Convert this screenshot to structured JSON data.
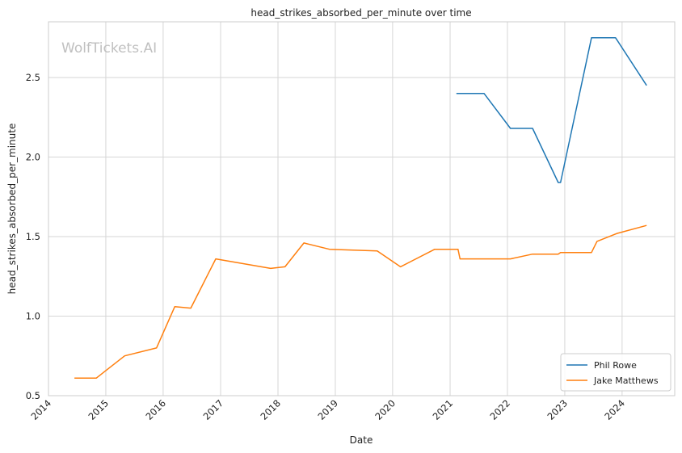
{
  "chart_data": {
    "type": "line",
    "title": "head_strikes_absorbed_per_minute over time",
    "xlabel": "Date",
    "ylabel": "head_strikes_absorbed_per_minute",
    "watermark": "WolfTickets.AI",
    "xlim": [
      "2014-01-01",
      "2024-12-01"
    ],
    "ylim": [
      0.5,
      2.85
    ],
    "x_ticks": [
      "2014",
      "2015",
      "2016",
      "2017",
      "2018",
      "2019",
      "2020",
      "2021",
      "2022",
      "2023",
      "2024"
    ],
    "y_ticks": [
      "0.5",
      "1.0",
      "1.5",
      "2.0",
      "2.5"
    ],
    "grid": true,
    "legend_position": "lower-right",
    "series": [
      {
        "name": "Phil Rowe",
        "color": "#1f77b4",
        "points": [
          [
            "2021-02-10",
            2.4
          ],
          [
            "2021-08-05",
            2.4
          ],
          [
            "2022-01-20",
            2.18
          ],
          [
            "2022-06-10",
            2.18
          ],
          [
            "2022-11-20",
            1.84
          ],
          [
            "2022-12-05",
            1.84
          ],
          [
            "2023-06-20",
            2.75
          ],
          [
            "2023-11-20",
            2.75
          ],
          [
            "2024-06-05",
            2.45
          ]
        ]
      },
      {
        "name": "Jake Matthews",
        "color": "#ff7f0e",
        "points": [
          [
            "2014-06-15",
            0.61
          ],
          [
            "2014-11-01",
            0.61
          ],
          [
            "2015-05-01",
            0.75
          ],
          [
            "2015-11-20",
            0.8
          ],
          [
            "2016-03-15",
            1.06
          ],
          [
            "2016-06-25",
            1.05
          ],
          [
            "2016-12-01",
            1.36
          ],
          [
            "2017-11-15",
            1.3
          ],
          [
            "2018-02-15",
            1.31
          ],
          [
            "2018-06-15",
            1.46
          ],
          [
            "2018-11-25",
            1.42
          ],
          [
            "2019-09-25",
            1.41
          ],
          [
            "2020-02-20",
            1.31
          ],
          [
            "2020-09-25",
            1.42
          ],
          [
            "2021-02-20",
            1.42
          ],
          [
            "2021-03-05",
            1.36
          ],
          [
            "2022-01-20",
            1.36
          ],
          [
            "2022-06-10",
            1.39
          ],
          [
            "2022-11-20",
            1.39
          ],
          [
            "2022-12-05",
            1.4
          ],
          [
            "2023-06-20",
            1.4
          ],
          [
            "2023-07-25",
            1.47
          ],
          [
            "2023-12-01",
            1.52
          ],
          [
            "2024-06-05",
            1.57
          ]
        ]
      }
    ]
  }
}
